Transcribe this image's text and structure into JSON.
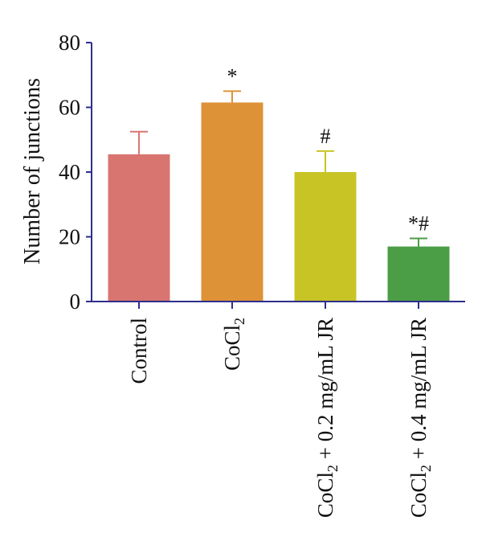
{
  "chart_data": {
    "type": "bar",
    "ylabel": "Number of junctions",
    "ylim": [
      0,
      80
    ],
    "yticks": [
      "0",
      "20",
      "40",
      "60",
      "80"
    ],
    "grid": false,
    "categories": [
      {
        "main": "Control",
        "sub": "",
        "rest": ""
      },
      {
        "main": "CoCl",
        "sub": "2",
        "rest": ""
      },
      {
        "main": "CoCl",
        "sub": "2",
        "rest": " + 0.2 mg/mL JR"
      },
      {
        "main": "CoCl",
        "sub": "2",
        "rest": " + 0.4 mg/mL JR"
      }
    ],
    "values": [
      45.5,
      61.5,
      40,
      17
    ],
    "errors": [
      7,
      3.5,
      6.5,
      2.5
    ],
    "significance": [
      "",
      "*",
      "#",
      "*#"
    ],
    "colors": [
      "#d97570",
      "#de9238",
      "#c8c426",
      "#4c9e46"
    ],
    "axis_color": "#2e2e8c"
  }
}
